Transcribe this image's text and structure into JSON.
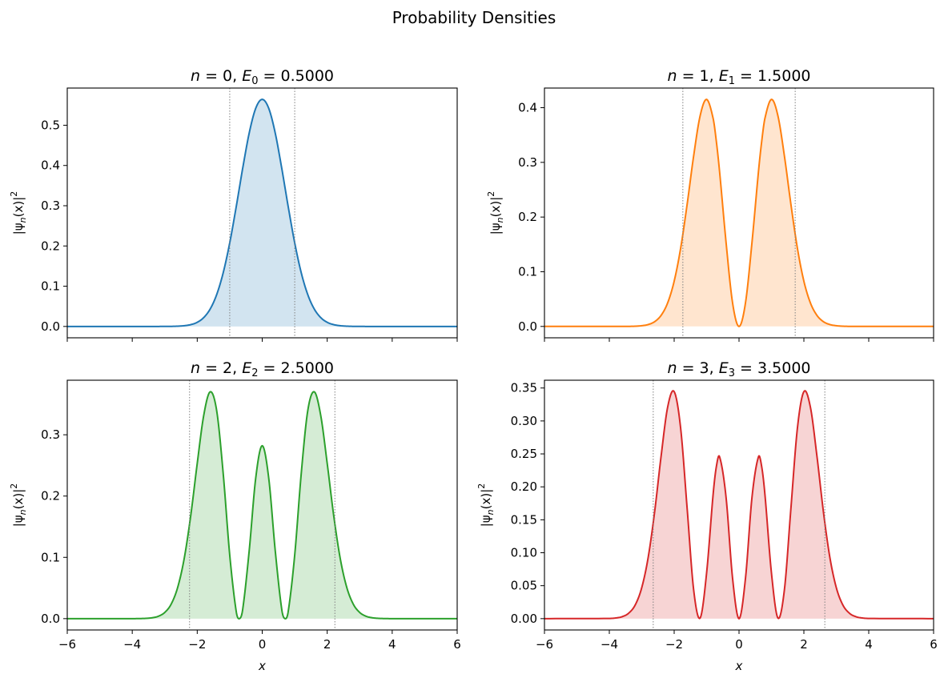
{
  "suptitle": "Probability Densities",
  "chart_data": [
    {
      "type": "area",
      "title": {
        "var": "n",
        "n": "0",
        "energy_var": "E",
        "sub": "0",
        "value": "0.5000"
      },
      "xlabel": "",
      "ylabel": {
        "pre": "|ψ",
        "sub": "n",
        "mid": "(x)|",
        "sup": "2"
      },
      "color": "#1f77b4",
      "xlim": [
        -6,
        6
      ],
      "ylim": [
        -0.0282,
        0.5924
      ],
      "xticks": [
        -6,
        -4,
        -2,
        0,
        2,
        4,
        6
      ],
      "xtick_labels_shown": false,
      "yticks": [
        "0.0",
        "0.1",
        "0.2",
        "0.3",
        "0.4",
        "0.5"
      ],
      "turning_points": [
        -1.0,
        1.0
      ],
      "x": [
        -6,
        -4,
        -3.8,
        -3.6,
        -3.4,
        -3.2,
        -3.0,
        -2.8,
        -2.6,
        -2.4,
        -2.2,
        -2.0,
        -1.8,
        -1.6,
        -1.4,
        -1.2,
        -1.0,
        -0.8,
        -0.7,
        -0.6,
        -0.4,
        -0.2,
        0,
        0.2,
        0.4,
        0.6,
        0.7,
        0.8,
        1.0,
        1.2,
        1.4,
        1.6,
        1.8,
        2.0,
        2.2,
        2.4,
        2.6,
        2.8,
        3.0,
        3.2,
        3.4,
        3.6,
        3.8,
        4,
        6
      ],
      "values": [
        0,
        0,
        0,
        0,
        0,
        0,
        0.0001,
        0.0002,
        0.0007,
        0.0018,
        0.0045,
        0.0103,
        0.0221,
        0.0436,
        0.0795,
        0.1337,
        0.2076,
        0.2975,
        0.3456,
        0.3936,
        0.4808,
        0.5421,
        0.5642,
        0.5421,
        0.4808,
        0.3936,
        0.3456,
        0.2975,
        0.2076,
        0.1337,
        0.0795,
        0.0436,
        0.0221,
        0.0103,
        0.0045,
        0.0018,
        0.0007,
        0.0002,
        0.0001,
        0,
        0,
        0,
        0,
        0,
        0
      ]
    },
    {
      "type": "area",
      "title": {
        "var": "n",
        "n": "1",
        "energy_var": "E",
        "sub": "1",
        "value": "1.5000"
      },
      "xlabel": "",
      "ylabel": {
        "pre": "|ψ",
        "sub": "n",
        "mid": "(x)|",
        "sup": "2"
      },
      "color": "#ff7f0e",
      "xlim": [
        -6,
        6
      ],
      "ylim": [
        -0.0208,
        0.4359
      ],
      "xticks": [
        -6,
        -4,
        -2,
        0,
        2,
        4,
        6
      ],
      "xtick_labels_shown": false,
      "yticks": [
        "0.0",
        "0.1",
        "0.2",
        "0.3",
        "0.4"
      ],
      "turning_points": [
        -1.7321,
        1.7321
      ],
      "x": [
        -6,
        -4,
        -3.8,
        -3.6,
        -3.4,
        -3.2,
        -3.0,
        -2.8,
        -2.6,
        -2.4,
        -2.2,
        -2.0,
        -1.8,
        -1.6,
        -1.4,
        -1.2,
        -1.0,
        -0.8,
        -0.7,
        -0.6,
        -0.4,
        -0.2,
        0,
        0.2,
        0.4,
        0.6,
        0.7,
        0.8,
        1.0,
        1.2,
        1.4,
        1.6,
        1.8,
        2.0,
        2.2,
        2.4,
        2.6,
        2.8,
        3.0,
        3.2,
        3.4,
        3.6,
        3.8,
        4,
        6
      ],
      "values": [
        0,
        0,
        0,
        0,
        0.0001,
        0.0004,
        0.0013,
        0.0035,
        0.0088,
        0.0205,
        0.0432,
        0.0827,
        0.1431,
        0.2233,
        0.3115,
        0.385,
        0.4151,
        0.3808,
        0.3387,
        0.2834,
        0.1538,
        0.0434,
        0,
        0.0434,
        0.1538,
        0.2834,
        0.3387,
        0.3808,
        0.4151,
        0.385,
        0.3115,
        0.2233,
        0.1431,
        0.0827,
        0.0432,
        0.0205,
        0.0088,
        0.0035,
        0.0013,
        0.0004,
        0.0001,
        0,
        0,
        0,
        0
      ]
    },
    {
      "type": "area",
      "title": {
        "var": "n",
        "n": "2",
        "energy_var": "E",
        "sub": "2",
        "value": "2.5000"
      },
      "xlabel": "x",
      "ylabel": {
        "pre": "|ψ",
        "sub": "n",
        "mid": "(x)|",
        "sup": "2"
      },
      "color": "#2ca02c",
      "xlim": [
        -6,
        6
      ],
      "ylim": [
        -0.0185,
        0.389
      ],
      "xticks": [
        -6,
        -4,
        -2,
        0,
        2,
        4,
        6
      ],
      "xtick_labels": [
        "−6",
        "−4",
        "−2",
        "0",
        "2",
        "4",
        "6"
      ],
      "xtick_labels_shown": true,
      "yticks": [
        "0.0",
        "0.1",
        "0.2",
        "0.3"
      ],
      "turning_points": [
        -2.2361,
        2.2361
      ],
      "x": [
        -6,
        -4,
        -3.8,
        -3.6,
        -3.4,
        -3.2,
        -3.0,
        -2.8,
        -2.6,
        -2.4,
        -2.2,
        -2.0,
        -1.8,
        -1.6,
        -1.4,
        -1.2,
        -1.0,
        -0.8,
        -0.7,
        -0.6,
        -0.4,
        -0.2,
        0,
        0.2,
        0.4,
        0.6,
        0.7,
        0.8,
        1.0,
        1.2,
        1.4,
        1.6,
        1.8,
        2.0,
        2.2,
        2.4,
        2.6,
        2.8,
        3.0,
        3.2,
        3.4,
        3.6,
        3.8,
        4,
        6
      ],
      "values": [
        0,
        0,
        0.0001,
        0.0004,
        0.0013,
        0.0038,
        0.0101,
        0.0239,
        0.0513,
        0.0984,
        0.1681,
        0.2532,
        0.3317,
        0.3701,
        0.3388,
        0.2362,
        0.1038,
        0.0117,
        0.0001,
        0.0154,
        0.1112,
        0.2294,
        0.2821,
        0.2294,
        0.1112,
        0.0154,
        0.0001,
        0.0117,
        0.1038,
        0.2362,
        0.3388,
        0.3701,
        0.3317,
        0.2532,
        0.1681,
        0.0984,
        0.0513,
        0.0239,
        0.0101,
        0.0038,
        0.0013,
        0.0004,
        0.0001,
        0,
        0
      ]
    },
    {
      "type": "area",
      "title": {
        "var": "n",
        "n": "3",
        "energy_var": "E",
        "sub": "3",
        "value": "3.5000"
      },
      "xlabel": "x",
      "ylabel": {
        "pre": "|ψ",
        "sub": "n",
        "mid": "(x)|",
        "sup": "2"
      },
      "color": "#d62728",
      "xlim": [
        -6,
        6
      ],
      "ylim": [
        -0.0172,
        0.3618
      ],
      "xticks": [
        -6,
        -4,
        -2,
        0,
        2,
        4,
        6
      ],
      "xtick_labels": [
        "−6",
        "−4",
        "−2",
        "0",
        "2",
        "4",
        "6"
      ],
      "xtick_labels_shown": true,
      "yticks": [
        "0.00",
        "0.05",
        "0.10",
        "0.15",
        "0.20",
        "0.25",
        "0.30",
        "0.35"
      ],
      "turning_points": [
        -2.6458,
        2.6458
      ],
      "x": [
        -6,
        -4,
        -3.8,
        -3.6,
        -3.4,
        -3.2,
        -3.0,
        -2.8,
        -2.6,
        -2.4,
        -2.2,
        -2.0,
        -1.8,
        -1.6,
        -1.4,
        -1.2,
        -1.0,
        -0.8,
        -0.7,
        -0.6,
        -0.4,
        -0.2,
        0,
        0.2,
        0.4,
        0.6,
        0.7,
        0.8,
        1.0,
        1.2,
        1.4,
        1.6,
        1.8,
        2.0,
        2.2,
        2.4,
        2.6,
        2.8,
        3.0,
        3.2,
        3.4,
        3.6,
        3.8,
        4,
        6
      ],
      "values": [
        0,
        0.0003,
        0.001,
        0.003,
        0.0084,
        0.0209,
        0.047,
        0.0933,
        0.1631,
        0.2478,
        0.3212,
        0.3445,
        0.2889,
        0.1673,
        0.044,
        0.0009,
        0.0692,
        0.1878,
        0.2304,
        0.2456,
        0.1842,
        0.0616,
        0,
        0.0616,
        0.1842,
        0.2456,
        0.2304,
        0.1878,
        0.0692,
        0.0009,
        0.044,
        0.1673,
        0.2889,
        0.3445,
        0.3212,
        0.2478,
        0.1631,
        0.0933,
        0.047,
        0.0209,
        0.0084,
        0.003,
        0.001,
        0.0003,
        0
      ]
    }
  ]
}
